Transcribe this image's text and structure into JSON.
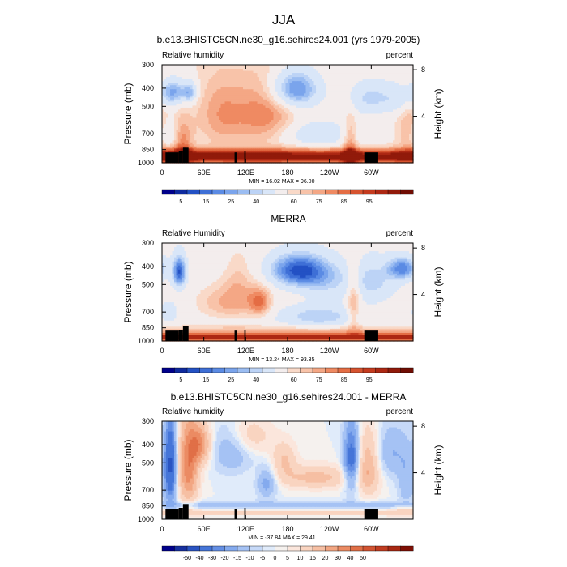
{
  "figure": {
    "title": "JJA"
  },
  "palettes": {
    "abs": [
      "#00008b",
      "#0f2a9e",
      "#2351c4",
      "#3e6fd6",
      "#5b8be4",
      "#7aa4ec",
      "#9bbdf2",
      "#bcd3f6",
      "#d9e6f8",
      "#f3eded",
      "#f9d9c8",
      "#f8c3a9",
      "#f4a785",
      "#ef8a62",
      "#e46d44",
      "#d6532f",
      "#c43b1f",
      "#ad2813",
      "#911a0a",
      "#700d03"
    ],
    "diff": [
      "#00008b",
      "#16309f",
      "#2a54c2",
      "#4575d8",
      "#648fe4",
      "#84aaee",
      "#a5c2f4",
      "#c6d9f8",
      "#e0ebfa",
      "#f5f1ee",
      "#fbe6dc",
      "#f9d4c0",
      "#f6bfa3",
      "#f2a682",
      "#eb8b63",
      "#e06f47",
      "#d25432",
      "#c03c21",
      "#a82813",
      "#7f0f05"
    ]
  },
  "chart_data": [
    {
      "type": "heatmap",
      "panel_title": "b.e13.BHISTC5CN.ne30_g16.sehires24.001 (yrs 1979-2005)",
      "left_label": "Relative humidity",
      "right_label": "percent",
      "ylabel": "Pressure (mb)",
      "y2label": "Height (km)",
      "x_ticks": [
        "0",
        "60E",
        "120E",
        "180",
        "120W",
        "60W"
      ],
      "x_tick_values": [
        0,
        60,
        120,
        180,
        240,
        300
      ],
      "x_range": [
        0,
        360
      ],
      "y_ticks": [
        "300",
        "400",
        "500",
        "700",
        "850",
        "1000"
      ],
      "y_tick_values": [
        300,
        400,
        500,
        700,
        850,
        1000
      ],
      "y_range": [
        1000,
        300
      ],
      "y2_ticks": [
        "8",
        "4"
      ],
      "y2_tick_values": [
        8,
        4
      ],
      "min_max": "MIN = 16.02  MAX = 96.00",
      "colorbar_labels": [
        "5",
        "15",
        "25",
        "40",
        "60",
        "75",
        "85",
        "95"
      ],
      "levels": [
        0,
        5,
        10,
        15,
        20,
        25,
        30,
        35,
        40,
        50,
        60,
        65,
        70,
        75,
        80,
        85,
        88,
        91,
        95,
        98
      ],
      "palette": "abs",
      "field": "model"
    },
    {
      "type": "heatmap",
      "panel_title": "MERRA",
      "left_label": "Relative Humidity",
      "right_label": "percent",
      "ylabel": "Pressure (mb)",
      "y2label": "Height (km)",
      "x_ticks": [
        "0",
        "60E",
        "120E",
        "180",
        "120W",
        "60W"
      ],
      "x_tick_values": [
        0,
        60,
        120,
        180,
        240,
        300
      ],
      "x_range": [
        0,
        360
      ],
      "y_ticks": [
        "300",
        "400",
        "500",
        "700",
        "850",
        "1000"
      ],
      "y_tick_values": [
        300,
        400,
        500,
        700,
        850,
        1000
      ],
      "y_range": [
        1000,
        300
      ],
      "y2_ticks": [
        "8",
        "4"
      ],
      "y2_tick_values": [
        8,
        4
      ],
      "min_max": "MIN = 13.24  MAX = 93.35",
      "colorbar_labels": [
        "5",
        "15",
        "25",
        "40",
        "60",
        "75",
        "85",
        "95"
      ],
      "levels": [
        0,
        5,
        10,
        15,
        20,
        25,
        30,
        35,
        40,
        50,
        60,
        65,
        70,
        75,
        80,
        85,
        88,
        91,
        95,
        98
      ],
      "palette": "abs",
      "field": "merra"
    },
    {
      "type": "heatmap",
      "panel_title": "b.e13.BHISTC5CN.ne30_g16.sehires24.001 - MERRA",
      "left_label": "Relative humidity",
      "right_label": "percent",
      "ylabel": "Pressure (mb)",
      "y2label": "Height (km)",
      "x_ticks": [
        "0",
        "60E",
        "120E",
        "180",
        "120W",
        "60W"
      ],
      "x_tick_values": [
        0,
        60,
        120,
        180,
        240,
        300
      ],
      "x_range": [
        0,
        360
      ],
      "y_ticks": [
        "300",
        "400",
        "500",
        "700",
        "850",
        "1000"
      ],
      "y_tick_values": [
        300,
        400,
        500,
        700,
        850,
        1000
      ],
      "y_range": [
        1000,
        300
      ],
      "y2_ticks": [
        "8",
        "4"
      ],
      "y2_tick_values": [
        8,
        4
      ],
      "min_max": "MIN = -37.84  MAX = 29.41",
      "colorbar_labels": [
        "-50",
        "-40",
        "-30",
        "-20",
        "-15",
        "-10",
        "-5",
        "0",
        "5",
        "10",
        "15",
        "20",
        "30",
        "40",
        "50"
      ],
      "levels": [
        -60,
        -50,
        -40,
        -30,
        -20,
        -15,
        -10,
        -5,
        -2,
        0,
        2,
        5,
        10,
        15,
        20,
        25,
        30,
        40,
        50,
        60
      ],
      "palette": "diff",
      "field": "diff"
    }
  ]
}
